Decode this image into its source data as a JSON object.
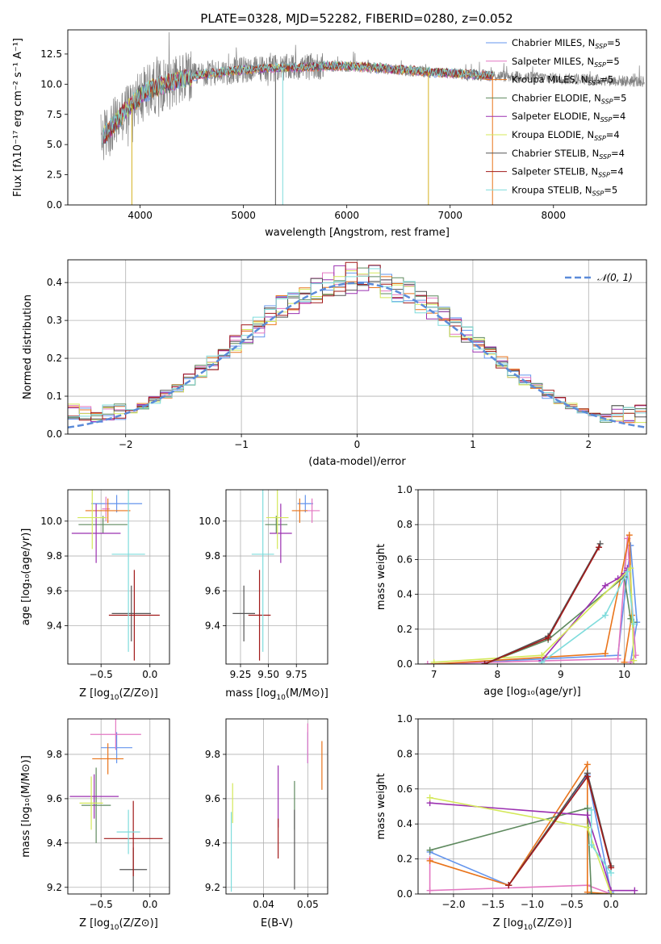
{
  "title": "PLATE=0328, MJD=52282, FIBERID=0280, z=0.052",
  "chart_data": [
    {
      "id": "spectrum",
      "type": "line",
      "xlabel": "wavelength [Angstrom, rest frame]",
      "ylabel": "Flux [fλ10⁻¹⁷ erg cm⁻² s⁻¹ A⁻¹]",
      "xlim": [
        3300,
        8900
      ],
      "ylim": [
        0,
        14.5
      ],
      "xticks": [
        "4000",
        "5000",
        "6000",
        "7000",
        "8000"
      ],
      "xtick_values": [
        4000,
        5000,
        6000,
        7000,
        8000
      ],
      "yticks": [
        "0.0",
        "2.5",
        "5.0",
        "7.5",
        "10.0",
        "12.5"
      ],
      "ytick_values": [
        0,
        2.5,
        5,
        7.5,
        10,
        12.5
      ],
      "data_color": "#808080",
      "continuum": {
        "x": [
          3620,
          3700,
          3800,
          3900,
          4000,
          4100,
          4200,
          4400,
          4600,
          4800,
          5000,
          5200,
          5500,
          5800,
          6000,
          6200,
          6500,
          6800,
          7000,
          7200,
          7400
        ],
        "y": [
          5.5,
          6.2,
          7.2,
          8.2,
          9.0,
          9.6,
          9.9,
          10.4,
          10.8,
          11.0,
          11.2,
          11.3,
          11.4,
          11.5,
          11.5,
          11.4,
          11.2,
          11.0,
          10.9,
          10.8,
          10.7
        ]
      },
      "model_xmax": 7420,
      "legend_position": "upper right",
      "legend": [
        {
          "label": "Chabrier MILES, N",
          "sub": "SSP",
          "tail": "=5",
          "color": "#6495ed"
        },
        {
          "label": "Salpeter MILES, N",
          "sub": "SSP",
          "tail": "=5",
          "color": "#e377c2"
        },
        {
          "label": "Kroupa MILES, N",
          "sub": "SSP",
          "tail": "=5",
          "color": "#e9741b"
        },
        {
          "label": "Chabrier ELODIE, N",
          "sub": "SSP",
          "tail": "=5",
          "color": "#5f8a5f"
        },
        {
          "label": "Salpeter ELODIE, N",
          "sub": "SSP",
          "tail": "=4",
          "color": "#9b30b0"
        },
        {
          "label": "Kroupa ELODIE, N",
          "sub": "SSP",
          "tail": "=4",
          "color": "#d4e85a"
        },
        {
          "label": "Chabrier STELIB, N",
          "sub": "SSP",
          "tail": "=4",
          "color": "#555555"
        },
        {
          "label": "Salpeter STELIB, N",
          "sub": "SSP",
          "tail": "=4",
          "color": "#a11919"
        },
        {
          "label": "Kroupa STELIB, N",
          "sub": "SSP",
          "tail": "=5",
          "color": "#7fdcdc"
        }
      ],
      "dips": [
        {
          "x": 3920,
          "color": "#d4b020"
        },
        {
          "x": 5310,
          "color": "#555555"
        },
        {
          "x": 5380,
          "color": "#7fdcdc"
        },
        {
          "x": 6790,
          "color": "#d4b020"
        },
        {
          "x": 7410,
          "color": "#e9741b"
        }
      ]
    },
    {
      "id": "residuals",
      "type": "histogram",
      "xlabel": "(data-model)/error",
      "ylabel": "Normed distribution",
      "xlim": [
        -2.5,
        2.5
      ],
      "ylim": [
        0,
        0.46
      ],
      "xticks": [
        "−2",
        "−1",
        "0",
        "1",
        "2"
      ],
      "xtick_values": [
        -2,
        -1,
        0,
        1,
        2
      ],
      "yticks": [
        "0.0",
        "0.1",
        "0.2",
        "0.3",
        "0.4"
      ],
      "ytick_values": [
        0,
        0.1,
        0.2,
        0.3,
        0.4
      ],
      "grid": true,
      "gaussian": {
        "label": "𝒩(0, 1)",
        "color": "#5b8bd9"
      },
      "bin_width": 0.1,
      "bin_start": -2.5
    },
    {
      "id": "age-vs-Z",
      "type": "errorbar",
      "xlabel_main": "Z [log",
      "xlabel_sub": "10",
      "xlabel_tail": "(Z/Z⊙)]",
      "ylabel": "age  [log₁₀(age/yr)]",
      "xlim": [
        -0.84,
        0.2
      ],
      "ylim": [
        9.18,
        10.18
      ],
      "xticks": [
        "−0.5",
        "0.0"
      ],
      "xtick_values": [
        -0.5,
        0.0
      ],
      "yticks": [
        "9.4",
        "9.6",
        "9.8",
        "10.0"
      ],
      "ytick_values": [
        9.4,
        9.6,
        9.8,
        10.0
      ],
      "points": [
        {
          "color": "#6495ed",
          "x": -0.34,
          "xerr": 0.26,
          "y": 10.1,
          "yerr": 0.05
        },
        {
          "color": "#e377c2",
          "x": -0.45,
          "xerr": 0.04,
          "y": 10.07,
          "yerr": 0.07
        },
        {
          "color": "#e9741b",
          "x": -0.43,
          "xerr": 0.23,
          "y": 10.06,
          "yerr": 0.07
        },
        {
          "color": "#5f8a5f",
          "x": -0.48,
          "xerr": 0.25,
          "y": 9.98,
          "yerr": 0.05
        },
        {
          "color": "#9b30b0",
          "x": -0.55,
          "xerr": 0.25,
          "y": 9.93,
          "yerr": 0.17
        },
        {
          "color": "#d4e85a",
          "x": -0.59,
          "xerr": 0.15,
          "y": 10.02,
          "yerr": 0.18
        },
        {
          "color": "#555555",
          "x": -0.19,
          "xerr": 0.2,
          "y": 9.47,
          "yerr": 0.16
        },
        {
          "color": "#a11919",
          "x": -0.16,
          "xerr": 0.26,
          "y": 9.46,
          "yerr": 0.26
        },
        {
          "color": "#7fdcdc",
          "x": -0.22,
          "xerr": 0.17,
          "y": 9.81,
          "yerr": 0.56
        }
      ]
    },
    {
      "id": "age-vs-mass",
      "type": "errorbar",
      "xlabel_main": "mass [log",
      "xlabel_sub": "10",
      "xlabel_tail": "(M/M⊙)]",
      "xlim": [
        9.12,
        10.03
      ],
      "ylim": [
        9.18,
        10.18
      ],
      "xticks": [
        "9.25",
        "9.50",
        "9.75"
      ],
      "xtick_values": [
        9.25,
        9.5,
        9.75
      ],
      "yticks": [
        "9.4",
        "9.6",
        "9.8",
        "10.0"
      ],
      "ytick_values": [
        9.4,
        9.6,
        9.8,
        10.0
      ],
      "points": [
        {
          "color": "#6495ed",
          "x": 9.83,
          "xerr": 0.07,
          "y": 10.1,
          "yerr": 0.05
        },
        {
          "color": "#e377c2",
          "x": 9.89,
          "xerr": 0.07,
          "y": 10.06,
          "yerr": 0.07
        },
        {
          "color": "#e9741b",
          "x": 9.78,
          "xerr": 0.07,
          "y": 10.06,
          "yerr": 0.07
        },
        {
          "color": "#5f8a5f",
          "x": 9.57,
          "xerr": 0.1,
          "y": 9.98,
          "yerr": 0.05
        },
        {
          "color": "#9b30b0",
          "x": 9.61,
          "xerr": 0.1,
          "y": 9.93,
          "yerr": 0.17
        },
        {
          "color": "#d4e85a",
          "x": 9.58,
          "xerr": 0.1,
          "y": 10.02,
          "yerr": 0.18
        },
        {
          "color": "#555555",
          "x": 9.28,
          "xerr": 0.1,
          "y": 9.47,
          "yerr": 0.16
        },
        {
          "color": "#a11919",
          "x": 9.42,
          "xerr": 0.1,
          "y": 9.46,
          "yerr": 0.26
        },
        {
          "color": "#7fdcdc",
          "x": 9.45,
          "xerr": 0.1,
          "y": 9.81,
          "yerr": 0.56
        }
      ]
    },
    {
      "id": "mass-weight-vs-age",
      "type": "line",
      "xlabel": "age  [log₁₀(age/yr)]",
      "ylabel": "mass weight",
      "xlim": [
        6.75,
        10.35
      ],
      "ylim": [
        0,
        1.0
      ],
      "xticks": [
        "7",
        "8",
        "9",
        "10"
      ],
      "xtick_values": [
        7,
        8,
        9,
        10
      ],
      "yticks": [
        "0.0",
        "0.2",
        "0.4",
        "0.6",
        "0.8",
        "1.0"
      ],
      "ytick_values": [
        0,
        0.2,
        0.4,
        0.6,
        0.8,
        1.0
      ],
      "series": [
        {
          "color": "#6495ed",
          "x": [
            7.0,
            9.9,
            10.1,
            10.2,
            10.1
          ],
          "y": [
            0.0,
            0.05,
            0.68,
            0.24,
            0.01
          ]
        },
        {
          "color": "#e377c2",
          "x": [
            6.9,
            9.9,
            10.05,
            10.18,
            10.1
          ],
          "y": [
            0.0,
            0.03,
            0.72,
            0.05,
            0.01
          ]
        },
        {
          "color": "#e9741b",
          "x": [
            7.0,
            9.7,
            10.08,
            10.12,
            10.0
          ],
          "y": [
            0.0,
            0.06,
            0.74,
            0.28,
            0.01
          ]
        },
        {
          "color": "#5f8a5f",
          "x": [
            7.8,
            8.8,
            10.0,
            10.1,
            10.15
          ],
          "y": [
            0.0,
            0.14,
            0.5,
            0.26,
            0.24
          ]
        },
        {
          "color": "#9b30b0",
          "x": [
            8.7,
            9.7,
            9.9,
            10.0,
            10.05
          ],
          "y": [
            0.02,
            0.45,
            0.49,
            0.52,
            0.55
          ]
        },
        {
          "color": "#d4e85a",
          "x": [
            7.0,
            8.7,
            10.1,
            10.15
          ],
          "y": [
            0.01,
            0.05,
            0.55,
            0.02
          ]
        },
        {
          "color": "#555555",
          "x": [
            7.8,
            8.8,
            9.62
          ],
          "y": [
            0.0,
            0.16,
            0.69
          ]
        },
        {
          "color": "#a11919",
          "x": [
            7.8,
            8.8,
            9.6
          ],
          "y": [
            0.0,
            0.15,
            0.67
          ]
        },
        {
          "color": "#7fdcdc",
          "x": [
            8.7,
            9.7,
            10.05,
            10.15
          ],
          "y": [
            0.01,
            0.28,
            0.53,
            0.23
          ]
        }
      ]
    },
    {
      "id": "mass-vs-Z",
      "type": "errorbar",
      "xlabel_main": "Z [log",
      "xlabel_sub": "10",
      "xlabel_tail": "(Z/Z⊙)]",
      "ylabel": "mass [log₁₀(M/M⊙)]",
      "xlim": [
        -0.84,
        0.2
      ],
      "ylim": [
        9.17,
        9.96
      ],
      "xticks": [
        "−0.5",
        "0.0"
      ],
      "xtick_values": [
        -0.5,
        0.0
      ],
      "yticks": [
        "9.2",
        "9.4",
        "9.6",
        "9.8"
      ],
      "ytick_values": [
        9.2,
        9.4,
        9.6,
        9.8
      ],
      "points": [
        {
          "color": "#6495ed",
          "x": -0.34,
          "xerr": 0.16,
          "y": 9.83,
          "yerr": 0.07
        },
        {
          "color": "#e377c2",
          "x": -0.35,
          "xerr": 0.26,
          "y": 9.89,
          "yerr": 0.07
        },
        {
          "color": "#e9741b",
          "x": -0.43,
          "xerr": 0.16,
          "y": 9.78,
          "yerr": 0.07
        },
        {
          "color": "#5f8a5f",
          "x": -0.55,
          "xerr": 0.15,
          "y": 9.57,
          "yerr": 0.17
        },
        {
          "color": "#9b30b0",
          "x": -0.57,
          "xerr": 0.25,
          "y": 9.61,
          "yerr": 0.1
        },
        {
          "color": "#d4e85a",
          "x": -0.6,
          "xerr": 0.12,
          "y": 9.58,
          "yerr": 0.12
        },
        {
          "color": "#555555",
          "x": -0.17,
          "xerr": 0.14,
          "y": 9.28,
          "yerr": 0.1
        },
        {
          "color": "#a11919",
          "x": -0.17,
          "xerr": 0.3,
          "y": 9.42,
          "yerr": 0.17
        },
        {
          "color": "#7fdcdc",
          "x": -0.22,
          "xerr": 0.12,
          "y": 9.45,
          "yerr": 0.1
        }
      ]
    },
    {
      "id": "mass-vs-ebv",
      "type": "errorbar",
      "xlabel_main": "E(B-V)",
      "xlim": [
        0.0315,
        0.0545
      ],
      "ylim": [
        9.17,
        9.96
      ],
      "xticks": [
        "0.04",
        "0.05"
      ],
      "xtick_values": [
        0.04,
        0.05
      ],
      "yticks": [
        "9.2",
        "9.4",
        "9.6",
        "9.8"
      ],
      "ytick_values": [
        9.2,
        9.4,
        9.6,
        9.8
      ],
      "points": [
        {
          "color": "#6495ed",
          "x": 0.05,
          "xerr": 0,
          "y": 9.83,
          "yerr": 0.07
        },
        {
          "color": "#e377c2",
          "x": 0.05,
          "xerr": 0,
          "y": 9.85,
          "yerr": 0.09
        },
        {
          "color": "#e9741b",
          "x": 0.0532,
          "xerr": 0,
          "y": 9.75,
          "yerr": 0.11
        },
        {
          "color": "#5f8a5f",
          "x": 0.047,
          "xerr": 0,
          "y": 9.57,
          "yerr": 0.11
        },
        {
          "color": "#9b30b0",
          "x": 0.0433,
          "xerr": 0,
          "y": 9.61,
          "yerr": 0.14
        },
        {
          "color": "#d4e85a",
          "x": 0.033,
          "xerr": 0,
          "y": 9.58,
          "yerr": 0.09
        },
        {
          "color": "#555555",
          "x": 0.047,
          "xerr": 0,
          "y": 9.37,
          "yerr": 0.18
        },
        {
          "color": "#a11919",
          "x": 0.0433,
          "xerr": 0,
          "y": 9.42,
          "yerr": 0.09
        },
        {
          "color": "#7fdcdc",
          "x": 0.0327,
          "xerr": 0,
          "y": 9.36,
          "yerr": 0.18
        }
      ]
    },
    {
      "id": "mass-weight-vs-Z",
      "type": "line",
      "xlabel_main": "Z [log",
      "xlabel_sub": "10",
      "xlabel_tail": "(Z/Z⊙)]",
      "ylabel": "mass weight",
      "xlim": [
        -2.45,
        0.45
      ],
      "ylim": [
        0,
        1.0
      ],
      "xticks": [
        "−2.0",
        "−1.5",
        "−1.0",
        "−0.5",
        "0.0"
      ],
      "xtick_values": [
        -2.0,
        -1.5,
        -1.0,
        -0.5,
        0.0
      ],
      "yticks": [
        "0.0",
        "0.2",
        "0.4",
        "0.6",
        "0.8",
        "1.0"
      ],
      "ytick_values": [
        0,
        0.2,
        0.4,
        0.6,
        0.8,
        1.0
      ],
      "series": [
        {
          "color": "#6495ed",
          "x": [
            -2.3,
            -1.3,
            -0.3,
            0.0
          ],
          "y": [
            0.24,
            0.05,
            0.68,
            0.01
          ]
        },
        {
          "color": "#e377c2",
          "x": [
            -2.3,
            -2.3,
            -0.3,
            0.0
          ],
          "y": [
            0.2,
            0.02,
            0.05,
            0.0
          ]
        },
        {
          "color": "#e9741b",
          "x": [
            -2.3,
            -1.3,
            -0.3,
            -0.3,
            0.0
          ],
          "y": [
            0.19,
            0.05,
            0.74,
            0.01,
            0.0
          ]
        },
        {
          "color": "#5f8a5f",
          "x": [
            -2.3,
            -0.3,
            -0.25,
            0.0
          ],
          "y": [
            0.25,
            0.49,
            0.0,
            0.0
          ]
        },
        {
          "color": "#9b30b0",
          "x": [
            -2.3,
            -0.3,
            0.0,
            0.3
          ],
          "y": [
            0.52,
            0.45,
            0.02,
            0.02
          ]
        },
        {
          "color": "#d4e85a",
          "x": [
            -2.3,
            -0.3,
            0.0
          ],
          "y": [
            0.55,
            0.38,
            0.0
          ]
        },
        {
          "color": "#555555",
          "x": [
            -1.3,
            -0.3,
            0.0
          ],
          "y": [
            0.05,
            0.69,
            0.16
          ]
        },
        {
          "color": "#a11919",
          "x": [
            -1.3,
            -0.3,
            0.0
          ],
          "y": [
            0.05,
            0.67,
            0.15
          ]
        },
        {
          "color": "#7fdcdc",
          "x": [
            -0.25,
            -0.25,
            0.0
          ],
          "y": [
            0.48,
            0.28,
            0.12
          ]
        }
      ]
    }
  ]
}
